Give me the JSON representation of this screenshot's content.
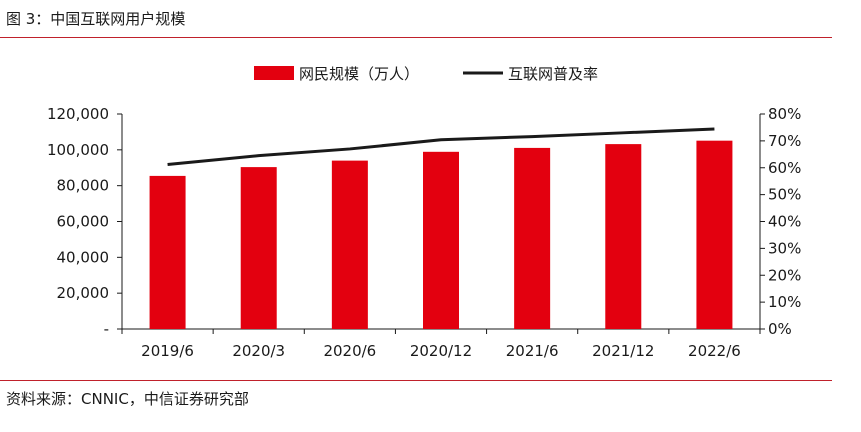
{
  "figure_title": "图 3：中国互联网用户规模",
  "source": "资料来源：CNNIC，中信证券研究部",
  "colors": {
    "bar": "#e3000f",
    "line": "#1a1a1a",
    "rule": "#c0212b"
  },
  "chart_data": {
    "type": "bar",
    "categories": [
      "2019/6",
      "2020/3",
      "2020/6",
      "2020/12",
      "2021/6",
      "2021/12",
      "2022/6"
    ],
    "series": [
      {
        "name": "网民规模（万人）",
        "type": "bar",
        "axis": "left",
        "values": [
          85449,
          90359,
          93984,
          98899,
          101074,
          103195,
          105114
        ]
      },
      {
        "name": "互联网普及率",
        "type": "line",
        "axis": "right",
        "values": [
          61.2,
          64.5,
          67.0,
          70.4,
          71.6,
          73.0,
          74.4
        ]
      }
    ],
    "y_left": {
      "ylim": [
        0,
        120000
      ],
      "tick_labels": [
        "-",
        "20,000",
        "40,000",
        "60,000",
        "80,000",
        "100,000",
        "120,000"
      ]
    },
    "y_right": {
      "ylim": [
        0,
        80
      ],
      "tick_labels": [
        "0%",
        "10%",
        "20%",
        "30%",
        "40%",
        "50%",
        "60%",
        "70%",
        "80%"
      ]
    },
    "legend_position": "top-center",
    "grid": false
  }
}
